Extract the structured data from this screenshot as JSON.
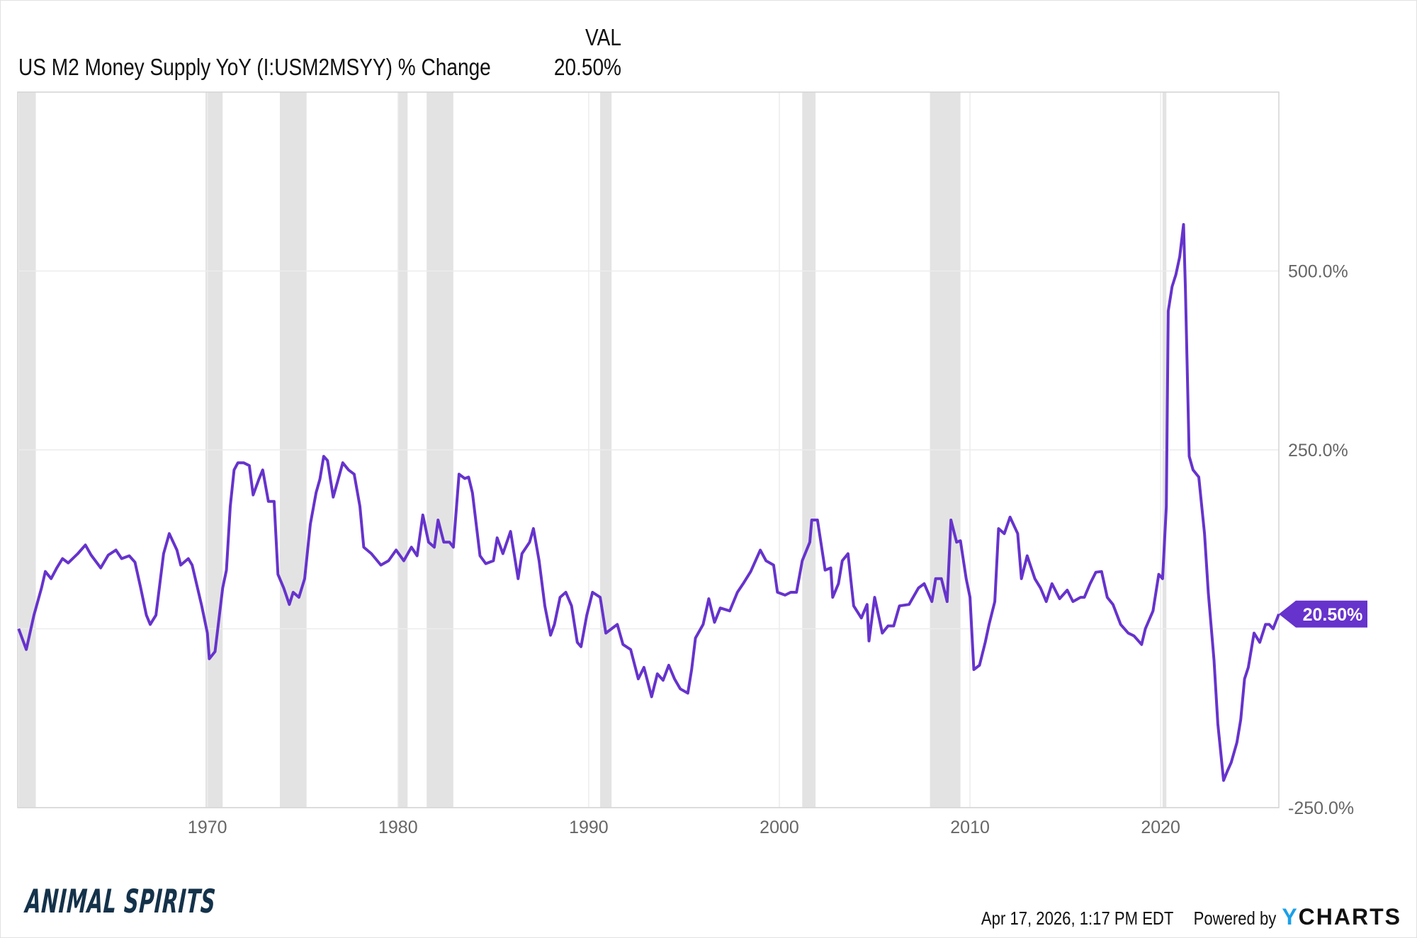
{
  "header": {
    "value_column": "VAL",
    "series_label": "US M2 Money Supply YoY (I:USM2MSYY) % Change",
    "series_value": "20.50%"
  },
  "footer": {
    "logo": "ANIMAL SPIRITS",
    "timestamp": "Apr 17, 2026, 1:17 PM EDT",
    "powered_by": "Powered by",
    "brand_y": "Y",
    "brand_rest": "CHARTS"
  },
  "colors": {
    "line": "#6633cc",
    "recession": "#e3e3e3",
    "grid": "#ececec"
  },
  "chart_data": {
    "type": "line",
    "title": "US M2 Money Supply YoY (I:USM2MSYY) % Change",
    "xlabel": "",
    "ylabel": "",
    "xlim": [
      1960.05,
      2026.2
    ],
    "ylim": [
      -250,
      750
    ],
    "grid": true,
    "y_axis_side": "right",
    "yticks": [
      {
        "v": 500,
        "label": "500.0%"
      },
      {
        "v": 250,
        "label": "250.0%"
      },
      {
        "v": 0,
        "label": ""
      },
      {
        "v": -250,
        "label": "-250.0%"
      }
    ],
    "xticks": [
      {
        "v": 1970,
        "label": "1970"
      },
      {
        "v": 1980,
        "label": "1980"
      },
      {
        "v": 1990,
        "label": "1990"
      },
      {
        "v": 2000,
        "label": "2000"
      },
      {
        "v": 2010,
        "label": "2010"
      },
      {
        "v": 2020,
        "label": "2020"
      }
    ],
    "last_value_label": "20.50%",
    "last_value": 20.5,
    "recessions": [
      [
        1960.1,
        1961.0
      ],
      [
        1969.9,
        1970.8
      ],
      [
        1973.8,
        1975.2
      ],
      [
        1980.0,
        1980.5
      ],
      [
        1981.5,
        1982.9
      ],
      [
        1990.6,
        1991.2
      ],
      [
        2001.2,
        2001.9
      ],
      [
        2007.9,
        2009.5
      ],
      [
        2020.1,
        2020.3
      ]
    ],
    "x": [
      1960.1,
      1960.5,
      1960.9,
      1961.3,
      1961.5,
      1961.8,
      1962.1,
      1962.4,
      1962.7,
      1963.2,
      1963.6,
      1963.9,
      1964.4,
      1964.8,
      1965.2,
      1965.5,
      1965.9,
      1966.2,
      1966.5,
      1966.8,
      1967.0,
      1967.3,
      1967.7,
      1968.0,
      1968.4,
      1968.6,
      1969.0,
      1969.2,
      1969.7,
      1970.0,
      1970.1,
      1970.4,
      1970.8,
      1971.0,
      1971.2,
      1971.4,
      1971.6,
      1971.9,
      1972.2,
      1972.4,
      1972.7,
      1972.9,
      1973.2,
      1973.5,
      1973.7,
      1974.0,
      1974.3,
      1974.5,
      1974.8,
      1975.1,
      1975.4,
      1975.7,
      1975.9,
      1976.1,
      1976.3,
      1976.6,
      1976.8,
      1977.1,
      1977.4,
      1977.7,
      1978.0,
      1978.2,
      1978.6,
      1979.1,
      1979.5,
      1979.9,
      1980.3,
      1980.7,
      1981.0,
      1981.3,
      1981.6,
      1981.9,
      1982.1,
      1982.4,
      1982.7,
      1982.9,
      1983.2,
      1983.5,
      1983.7,
      1983.9,
      1984.3,
      1984.6,
      1985.0,
      1985.2,
      1985.5,
      1985.9,
      1986.3,
      1986.5,
      1986.9,
      1987.1,
      1987.4,
      1987.7,
      1988.0,
      1988.2,
      1988.5,
      1988.8,
      1989.1,
      1989.4,
      1989.6,
      1989.9,
      1990.2,
      1990.6,
      1990.9,
      1991.2,
      1991.5,
      1991.8,
      1992.2,
      1992.6,
      1992.9,
      1993.3,
      1993.6,
      1993.9,
      1994.2,
      1994.5,
      1994.8,
      1995.2,
      1995.4,
      1995.6,
      1996.0,
      1996.3,
      1996.6,
      1996.9,
      1997.4,
      1997.8,
      1998.1,
      1998.5,
      1999.0,
      1999.3,
      1999.7,
      1999.9,
      2000.3,
      2000.6,
      2000.9,
      2001.2,
      2001.6,
      2001.7,
      2002.0,
      2002.4,
      2002.7,
      2002.8,
      2003.1,
      2003.3,
      2003.6,
      2003.9,
      2004.3,
      2004.6,
      2004.7,
      2005.0,
      2005.4,
      2005.7,
      2006.0,
      2006.3,
      2006.8,
      2007.3,
      2007.6,
      2008.0,
      2008.2,
      2008.5,
      2008.8,
      2009.0,
      2009.3,
      2009.5,
      2009.8,
      2010.0,
      2010.2,
      2010.5,
      2010.8,
      2011.0,
      2011.3,
      2011.5,
      2011.8,
      2012.1,
      2012.5,
      2012.7,
      2013.0,
      2013.4,
      2013.7,
      2014.0,
      2014.3,
      2014.7,
      2015.1,
      2015.4,
      2015.8,
      2016.0,
      2016.3,
      2016.6,
      2016.9,
      2017.2,
      2017.5,
      2017.9,
      2018.3,
      2018.6,
      2019.0,
      2019.2,
      2019.6,
      2019.9,
      2020.1,
      2020.3,
      2020.4,
      2020.6,
      2020.8,
      2021.0,
      2021.2,
      2021.3,
      2021.5,
      2021.7,
      2022.0,
      2022.3,
      2022.5,
      2022.8,
      2023.0,
      2023.3,
      2023.5,
      2023.7,
      2024.0,
      2024.2,
      2024.4,
      2024.6,
      2024.9,
      2025.2,
      2025.5,
      2025.7,
      2025.9,
      2026.2
    ],
    "values": [
      0,
      -29,
      19,
      57,
      80,
      70,
      85,
      98,
      92,
      105,
      117,
      103,
      85,
      103,
      110,
      98,
      102,
      93,
      57,
      19,
      6,
      19,
      105,
      133,
      110,
      89,
      98,
      89,
      32,
      -6,
      -42,
      -32,
      57,
      82,
      171,
      222,
      232,
      232,
      228,
      187,
      209,
      222,
      178,
      178,
      76,
      57,
      34,
      51,
      44,
      70,
      146,
      190,
      209,
      241,
      235,
      184,
      203,
      232,
      222,
      216,
      171,
      114,
      105,
      89,
      95,
      110,
      95,
      114,
      102,
      159,
      121,
      114,
      152,
      121,
      121,
      114,
      216,
      210,
      212,
      190,
      102,
      91,
      95,
      127,
      105,
      136,
      70,
      105,
      121,
      140,
      95,
      32,
      -9,
      6,
      44,
      51,
      32,
      -19,
      -25,
      19,
      51,
      44,
      -6,
      0,
      6,
      -22,
      -29,
      -70,
      -54,
      -95,
      -63,
      -72,
      -51,
      -70,
      -84,
      -90,
      -57,
      -13,
      6,
      42,
      9,
      29,
      25,
      51,
      63,
      80,
      110,
      95,
      89,
      51,
      47,
      51,
      51,
      95,
      121,
      152,
      152,
      82,
      85,
      44,
      63,
      95,
      105,
      32,
      15,
      34,
      -17,
      44,
      -6,
      4,
      4,
      32,
      34,
      57,
      63,
      38,
      70,
      70,
      38,
      152,
      121,
      123,
      70,
      44,
      -57,
      -51,
      -19,
      6,
      38,
      140,
      133,
      156,
      133,
      70,
      102,
      70,
      57,
      38,
      63,
      42,
      54,
      38,
      44,
      44,
      63,
      79,
      80,
      44,
      34,
      6,
      -6,
      -10,
      -22,
      0,
      25,
      76,
      70,
      171,
      444,
      478,
      495,
      520,
      565,
      476,
      241,
      222,
      212,
      133,
      51,
      -44,
      -133,
      -212,
      -199,
      -187,
      -159,
      -127,
      -70,
      -54,
      -6,
      -19,
      6,
      6,
      0,
      20.5
    ]
  }
}
